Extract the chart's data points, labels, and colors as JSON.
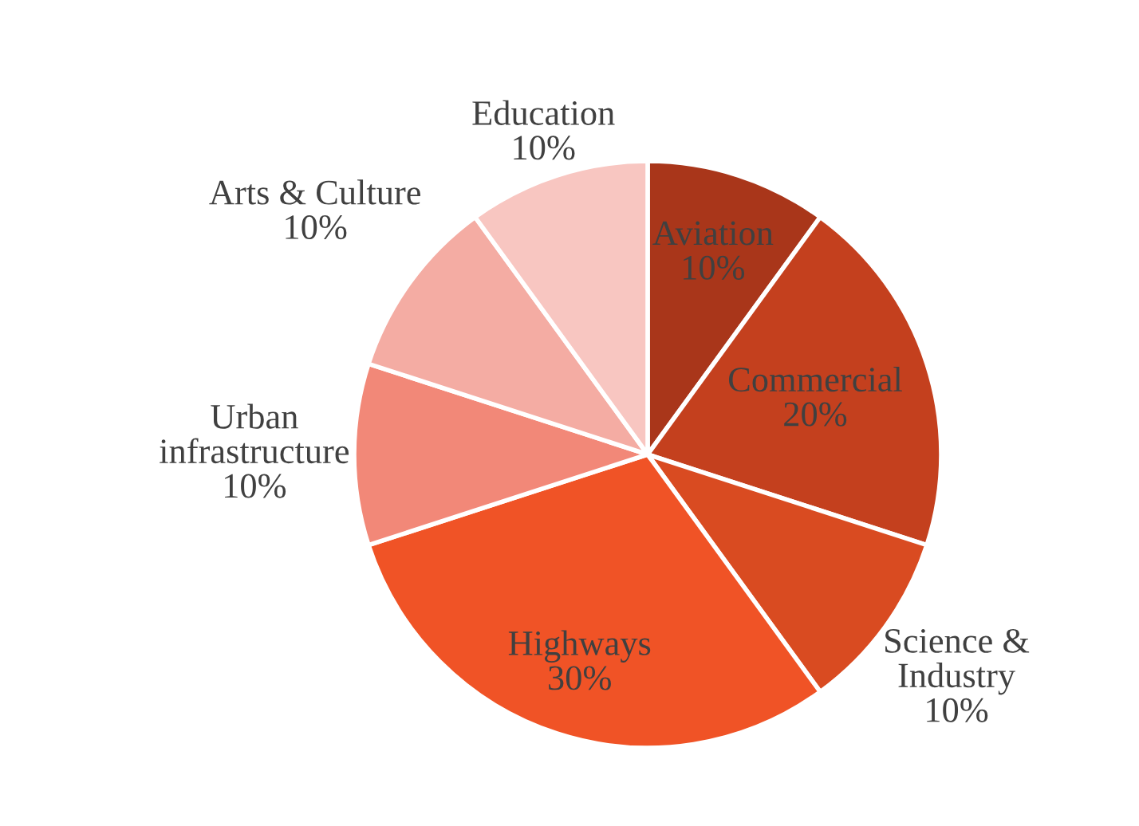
{
  "chart_data": {
    "type": "pie",
    "categories": [
      "Aviation",
      "Commercial",
      "Science & Industry",
      "Highways",
      "Urban infrastructure",
      "Arts & Culture",
      "Education"
    ],
    "values": [
      10,
      20,
      10,
      30,
      10,
      10,
      10
    ],
    "value_labels": [
      "10%",
      "20%",
      "10%",
      "30%",
      "10%",
      "10%",
      "10%"
    ],
    "colors": [
      "#a9361a",
      "#c4401e",
      "#d94b21",
      "#f05326",
      "#f28878",
      "#f4aca3",
      "#f8c6c1"
    ]
  }
}
